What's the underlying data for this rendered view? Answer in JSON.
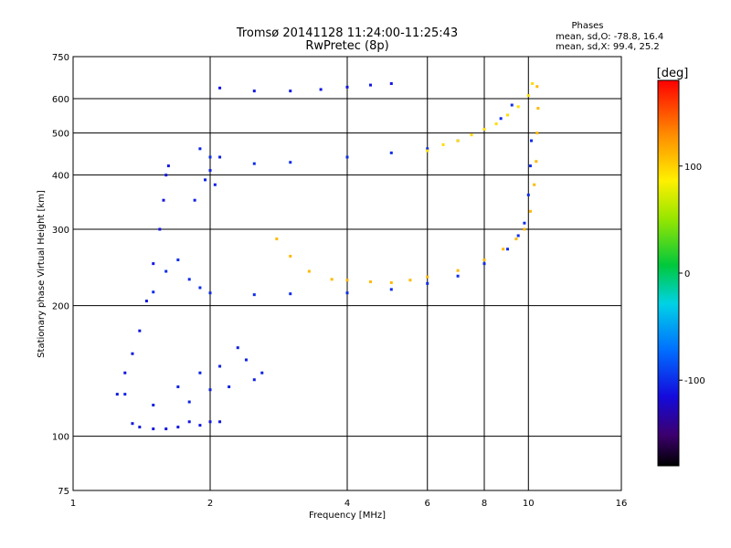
{
  "chart_data": {
    "type": "scatter",
    "title": "Tromsø 20141128 11:24:00-11:25:43",
    "subtitle": "RwPretec (8p)",
    "xlabel": "Frequency [MHz]",
    "ylabel": "Stationary phase Virtual Height [km]",
    "x_scale": "log",
    "y_scale": "log",
    "xlim": [
      1,
      16
    ],
    "ylim": [
      75,
      750
    ],
    "x_ticks": [
      1,
      2,
      4,
      6,
      8,
      10,
      16
    ],
    "x_tick_labels": [
      "1",
      "2",
      "4",
      "6",
      "8",
      "10",
      "16"
    ],
    "y_ticks": [
      75,
      100,
      200,
      300,
      400,
      500,
      600,
      750
    ],
    "y_tick_labels": [
      "75",
      "100",
      "200",
      "300",
      "400",
      "500",
      "600",
      "750"
    ],
    "grid": true,
    "stats": {
      "header": "Phases",
      "line_o": "mean, sd,O: -78.8, 16.4",
      "line_x": "mean, sd,X:  99.4, 25.2"
    },
    "colorbar": {
      "label": "[deg]",
      "range": [
        -180,
        180
      ],
      "ticks": [
        100,
        0,
        -100
      ],
      "tick_labels": [
        "100",
        "0",
        "-100"
      ]
    },
    "traces": [
      {
        "points": [
          [
            1.35,
            107
          ],
          [
            1.4,
            105
          ],
          [
            1.5,
            104
          ],
          [
            1.6,
            104
          ],
          [
            1.7,
            105
          ],
          [
            1.8,
            108
          ],
          [
            1.9,
            106
          ],
          [
            2.0,
            108
          ],
          [
            2.1,
            108
          ]
        ],
        "phase": -110
      },
      {
        "points": [
          [
            1.25,
            125
          ],
          [
            1.3,
            140
          ],
          [
            1.35,
            155
          ],
          [
            1.4,
            175
          ],
          [
            1.45,
            205
          ],
          [
            1.5,
            250
          ],
          [
            1.55,
            300
          ],
          [
            1.58,
            350
          ],
          [
            1.6,
            400
          ],
          [
            1.62,
            420
          ]
        ],
        "phase": -110
      },
      {
        "points": [
          [
            1.5,
            215
          ],
          [
            1.6,
            240
          ],
          [
            1.7,
            255
          ],
          [
            1.8,
            230
          ],
          [
            1.9,
            220
          ],
          [
            2.0,
            214
          ],
          [
            2.5,
            212
          ],
          [
            3.0,
            213
          ],
          [
            4.0,
            214
          ],
          [
            5.0,
            218
          ],
          [
            6.0,
            225
          ],
          [
            7.0,
            234
          ],
          [
            8.0,
            250
          ],
          [
            9.0,
            270
          ],
          [
            9.5,
            290
          ],
          [
            9.8,
            310
          ],
          [
            10.0,
            360
          ],
          [
            10.1,
            420
          ],
          [
            10.15,
            480
          ]
        ],
        "phase": -100
      },
      {
        "points": [
          [
            2.0,
            440
          ],
          [
            2.5,
            425
          ],
          [
            3.0,
            428
          ],
          [
            4.0,
            440
          ],
          [
            5.0,
            450
          ],
          [
            6.0,
            460
          ],
          [
            7.0,
            480
          ],
          [
            8.0,
            510
          ],
          [
            8.7,
            540
          ],
          [
            9.2,
            580
          ]
        ],
        "phase": -100
      },
      {
        "points": [
          [
            2.1,
            635
          ],
          [
            2.5,
            625
          ],
          [
            3.0,
            625
          ],
          [
            3.5,
            630
          ],
          [
            4.0,
            638
          ],
          [
            4.5,
            645
          ],
          [
            5.0,
            650
          ]
        ],
        "phase": -110
      },
      {
        "points": [
          [
            2.8,
            285
          ],
          [
            3.0,
            260
          ],
          [
            3.3,
            240
          ],
          [
            3.7,
            230
          ],
          [
            4.0,
            229
          ],
          [
            4.5,
            227
          ],
          [
            5.0,
            226
          ],
          [
            5.5,
            229
          ],
          [
            6.0,
            233
          ],
          [
            7.0,
            241
          ],
          [
            8.0,
            255
          ],
          [
            8.8,
            270
          ],
          [
            9.4,
            285
          ],
          [
            9.8,
            300
          ],
          [
            10.1,
            330
          ],
          [
            10.3,
            380
          ],
          [
            10.4,
            430
          ],
          [
            10.45,
            500
          ],
          [
            10.5,
            570
          ],
          [
            10.45,
            640
          ]
        ],
        "phase": 110
      },
      {
        "points": [
          [
            6.0,
            455
          ],
          [
            6.5,
            470
          ],
          [
            7.0,
            480
          ],
          [
            7.5,
            495
          ],
          [
            8.0,
            510
          ],
          [
            8.5,
            525
          ],
          [
            9.0,
            550
          ],
          [
            9.5,
            575
          ],
          [
            10.0,
            610
          ],
          [
            10.2,
            650
          ]
        ],
        "phase": 95
      },
      {
        "points": [
          [
            1.85,
            350
          ],
          [
            1.95,
            390
          ],
          [
            2.0,
            410
          ],
          [
            2.1,
            440
          ],
          [
            1.9,
            460
          ],
          [
            2.05,
            380
          ]
        ],
        "phase": -105
      },
      {
        "points": [
          [
            1.3,
            125
          ],
          [
            1.5,
            118
          ],
          [
            1.7,
            130
          ],
          [
            1.8,
            120
          ],
          [
            1.9,
            140
          ],
          [
            2.0,
            128
          ],
          [
            2.1,
            145
          ],
          [
            2.2,
            130
          ],
          [
            2.3,
            160
          ],
          [
            2.4,
            150
          ],
          [
            2.5,
            135
          ],
          [
            2.6,
            140
          ]
        ],
        "phase": -105
      }
    ]
  }
}
